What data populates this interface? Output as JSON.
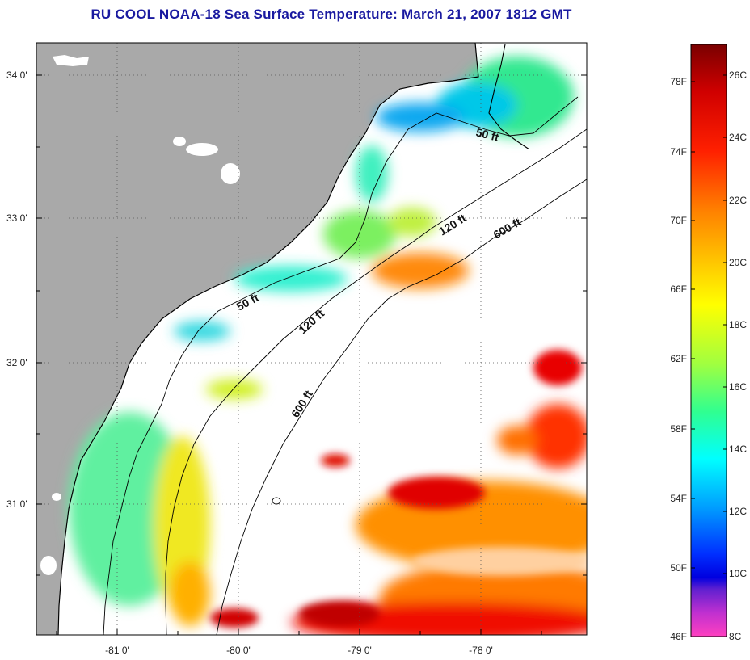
{
  "title": "RU COOL  NOAA-18  Sea Surface Temperature:  March 21, 2007 1812 GMT",
  "map": {
    "lat_ticks": [
      "34 0'",
      "33 0'",
      "32 0'",
      "31 0'"
    ],
    "lon_ticks": [
      "-81 0'",
      "-80 0'",
      "-79 0'",
      "-78 0'"
    ],
    "isobath_labels": [
      "50 ft",
      "50 ft",
      "120 ft",
      "120 ft",
      "600 ft",
      "600 ft"
    ],
    "colors": {
      "land": "#a9a9a9",
      "cloud": "#ffffff",
      "coast": "#000000"
    }
  },
  "colorbar": {
    "fahrenheit_labels": [
      "78F",
      "74F",
      "70F",
      "66F",
      "62F",
      "58F",
      "54F",
      "50F",
      "46F"
    ],
    "celsius_labels": [
      "26C",
      "24C",
      "22C",
      "20C",
      "18C",
      "16C",
      "14C",
      "12C",
      "10C",
      "8C"
    ],
    "stops": [
      "#800000",
      "#e00000",
      "#ff7a00",
      "#ffff00",
      "#30ff80",
      "#00ffff",
      "#0060ff",
      "#0000d8",
      "#ff40c0"
    ]
  }
}
